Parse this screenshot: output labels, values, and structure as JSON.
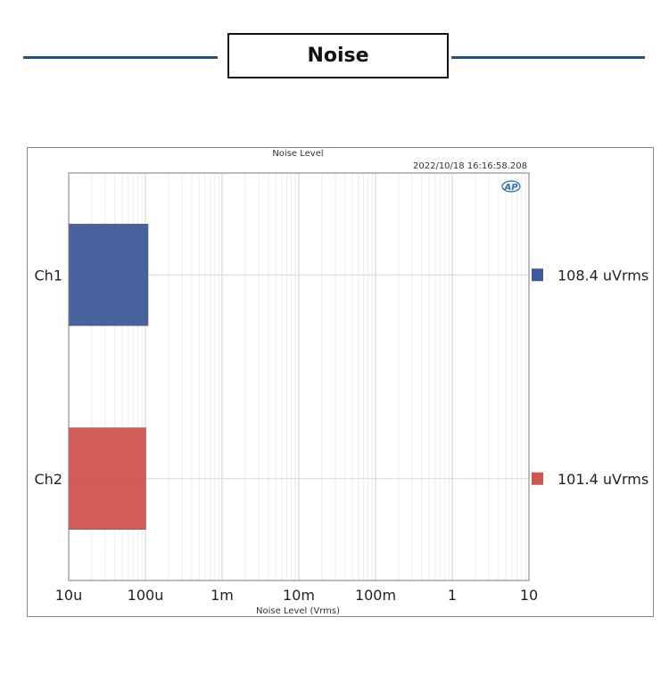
{
  "banner": {
    "title": "Noise"
  },
  "chart_data": {
    "type": "bar",
    "orientation": "horizontal",
    "title": "Noise Level",
    "timestamp": "2022/10/18 16:16:58.208",
    "logo": "AP",
    "xlabel": "Noise Level (Vrms)",
    "x_scale": "log",
    "xlim": [
      1e-05,
      10
    ],
    "x_ticks": [
      {
        "value": 1e-05,
        "label": "10u"
      },
      {
        "value": 0.0001,
        "label": "100u"
      },
      {
        "value": 0.001,
        "label": "1m"
      },
      {
        "value": 0.01,
        "label": "10m"
      },
      {
        "value": 0.1,
        "label": "100m"
      },
      {
        "value": 1,
        "label": "1"
      },
      {
        "value": 10,
        "label": "10"
      }
    ],
    "categories": [
      "Ch1",
      "Ch2"
    ],
    "values": [
      0.0001084,
      0.0001014
    ],
    "value_labels": [
      "108.4  uVrms",
      "101.4  uVrms"
    ],
    "colors": [
      "#3f5a9a",
      "#d05450"
    ],
    "grid": true,
    "legend_position": "right"
  }
}
